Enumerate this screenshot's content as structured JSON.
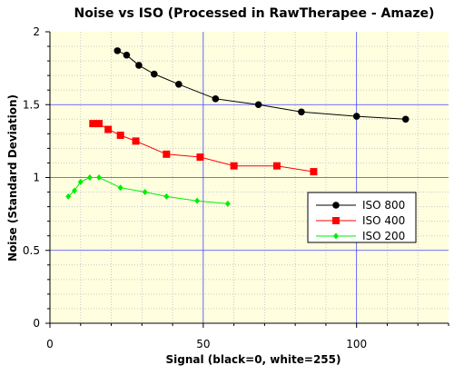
{
  "chart_data": {
    "type": "line",
    "title": "Noise vs ISO (Processed in RawTherapee - Amaze)",
    "xlabel": "Signal (black=0, white=255)",
    "ylabel": "Noise (Standard Deviation)",
    "xlim": [
      0,
      130
    ],
    "ylim": [
      0,
      2
    ],
    "xticks": [
      0,
      50,
      100
    ],
    "yticks": [
      0,
      0.5,
      1,
      1.5,
      2
    ],
    "ytick_labels": [
      "0",
      "0.5",
      "1",
      "1.5",
      "2"
    ],
    "grid": true,
    "legend_position": "center-right",
    "background_color": "#ffffe0",
    "series": [
      {
        "name": "ISO 800",
        "color": "#000000",
        "marker": "circle",
        "points": [
          [
            22,
            1.87
          ],
          [
            25,
            1.84
          ],
          [
            29,
            1.77
          ],
          [
            34,
            1.71
          ],
          [
            42,
            1.64
          ],
          [
            54,
            1.54
          ],
          [
            68,
            1.5
          ],
          [
            82,
            1.45
          ],
          [
            100,
            1.42
          ],
          [
            116,
            1.4
          ]
        ]
      },
      {
        "name": "ISO 400",
        "color": "#ff0000",
        "marker": "square",
        "points": [
          [
            14,
            1.37
          ],
          [
            16,
            1.37
          ],
          [
            19,
            1.33
          ],
          [
            23,
            1.29
          ],
          [
            28,
            1.25
          ],
          [
            38,
            1.16
          ],
          [
            49,
            1.14
          ],
          [
            60,
            1.08
          ],
          [
            74,
            1.08
          ],
          [
            86,
            1.04
          ]
        ]
      },
      {
        "name": "ISO 200",
        "color": "#00ee00",
        "marker": "diamond",
        "points": [
          [
            6,
            0.87
          ],
          [
            8,
            0.91
          ],
          [
            10,
            0.97
          ],
          [
            13,
            1.0
          ],
          [
            16,
            1.0
          ],
          [
            23,
            0.93
          ],
          [
            31,
            0.9
          ],
          [
            38,
            0.87
          ],
          [
            48,
            0.84
          ],
          [
            58,
            0.82
          ]
        ]
      }
    ]
  }
}
